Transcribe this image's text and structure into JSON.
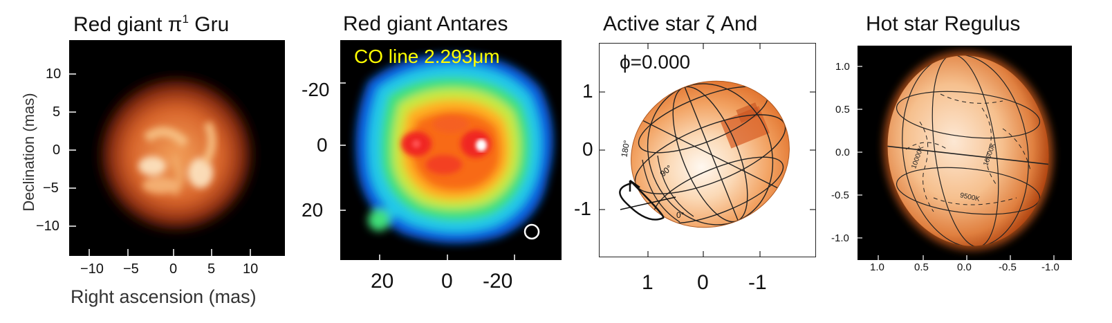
{
  "panels": [
    {
      "title_main": "Red giant π",
      "title_sup": "1",
      "title_tail": " Gru",
      "xlabel": "Right ascension (mas)",
      "ylabel": "Declination (mas)",
      "x_ticks": [
        "−10",
        "−5",
        "0",
        "5",
        "10"
      ],
      "y_ticks": [
        "10",
        "5",
        "0",
        "−5",
        "−10"
      ]
    },
    {
      "title": "Red giant Antares",
      "annotation": "CO line 2.293μm",
      "x_ticks": [
        "20",
        "0",
        "-20"
      ],
      "y_ticks": [
        "-20",
        "0",
        "20"
      ]
    },
    {
      "title": "Active star ζ And",
      "phase_label": "ϕ=0.000",
      "grid_labels": [
        "180°",
        "90°",
        "0°"
      ],
      "x_ticks": [
        "1",
        "0",
        "-1"
      ],
      "y_ticks": [
        "1",
        "0",
        "-1"
      ]
    },
    {
      "title": "Hot star Regulus",
      "temp_labels": [
        "10000K",
        "10500K",
        "9500K"
      ],
      "x_ticks": [
        "1.0",
        "0.5",
        "0.0",
        "-0.5",
        "-1.0"
      ],
      "y_ticks": [
        "1.0",
        "0.5",
        "0.0",
        "-0.5",
        "-1.0"
      ]
    }
  ],
  "colors": {
    "background": "#ffffff",
    "image_bg": "#000000",
    "annotation": "#ffff00"
  }
}
